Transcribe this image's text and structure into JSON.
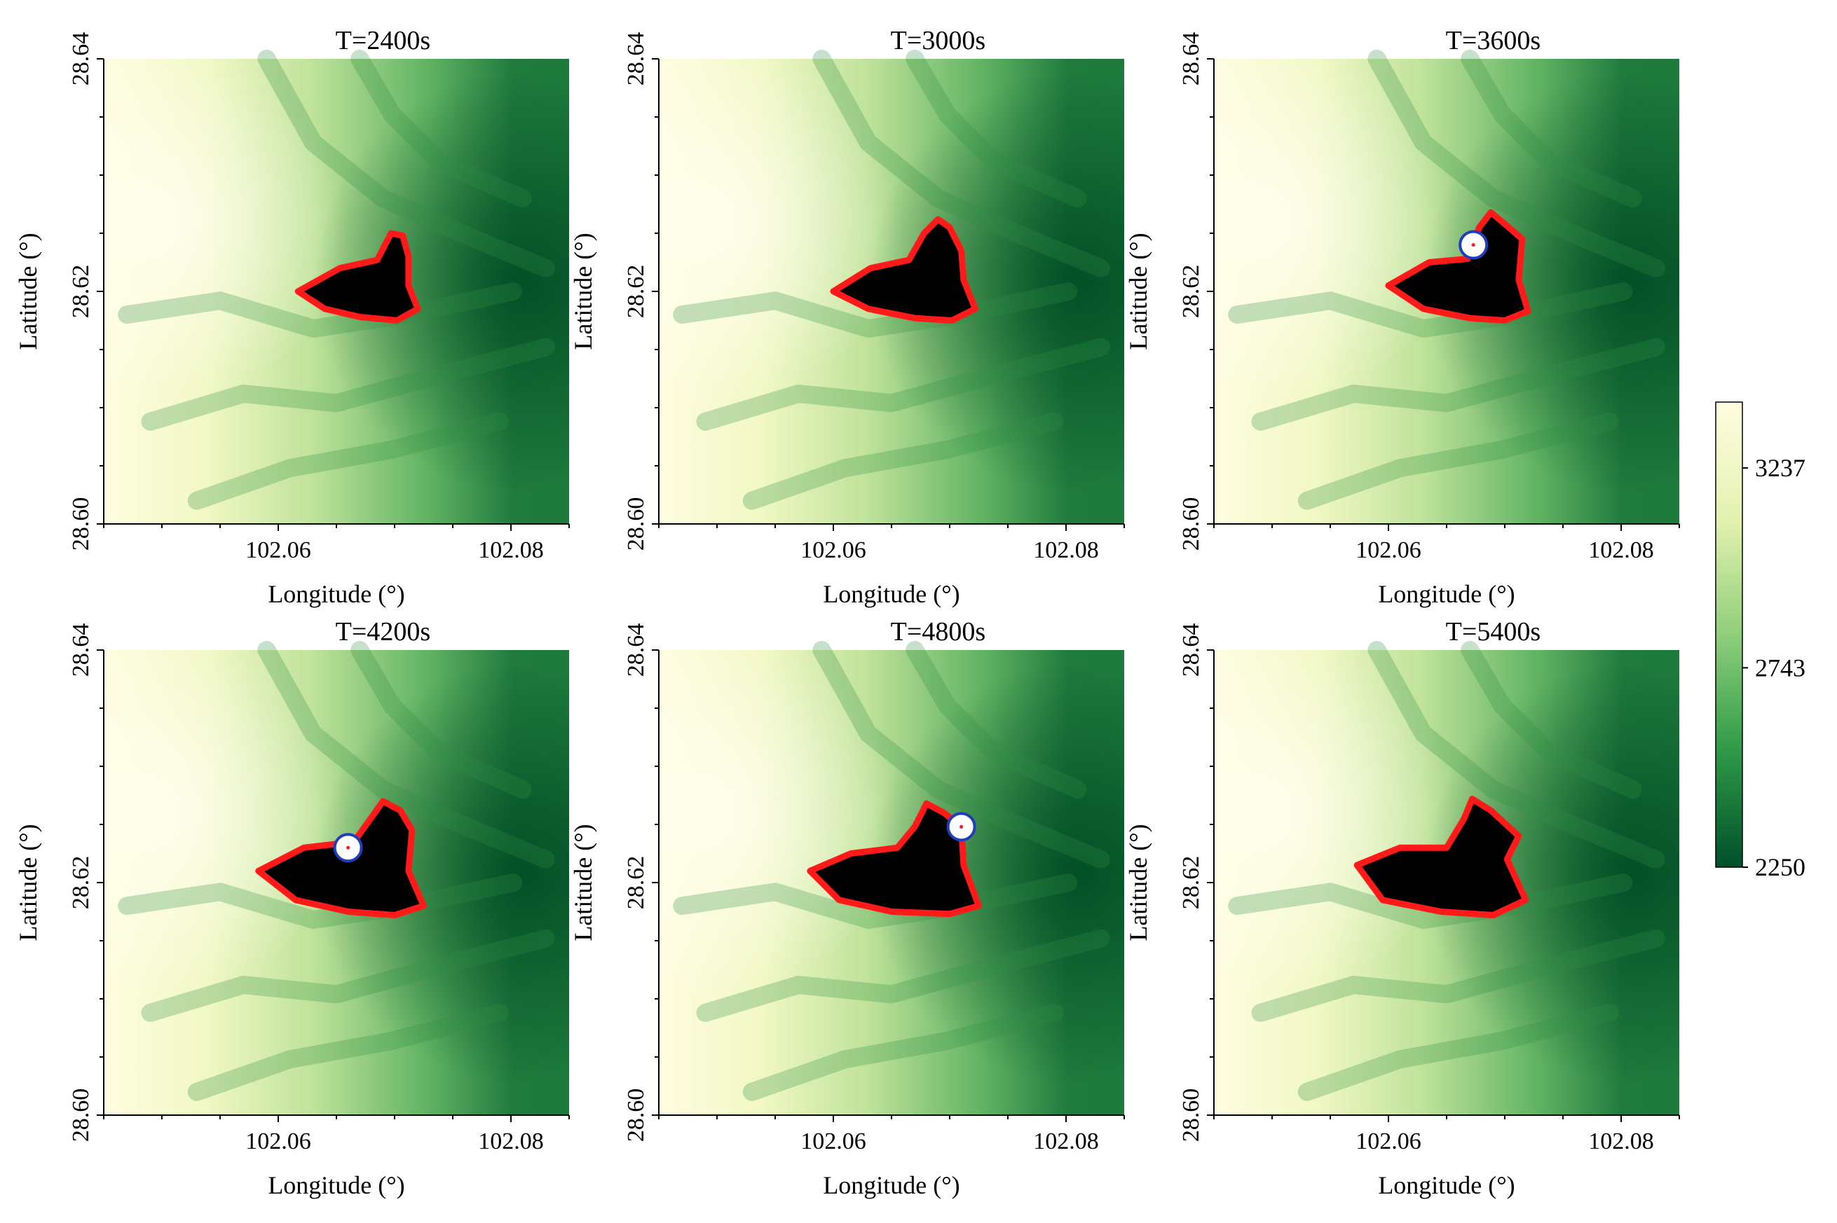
{
  "figure": {
    "panels": [
      {
        "title": "T=2400s",
        "xlabel": "Longitude (°)",
        "ylabel": "Latitude (°)",
        "marker": false
      },
      {
        "title": "T=3000s",
        "xlabel": "Longitude (°)",
        "ylabel": "Latitude (°)",
        "marker": false
      },
      {
        "title": "T=3600s",
        "xlabel": "Longitude (°)",
        "ylabel": "Latitude (°)",
        "marker": true
      },
      {
        "title": "T=4200s",
        "xlabel": "Longitude (°)",
        "ylabel": "Latitude (°)",
        "marker": true
      },
      {
        "title": "T=4800s",
        "xlabel": "Longitude (°)",
        "ylabel": "Latitude (°)",
        "marker": true
      },
      {
        "title": "T=5400s",
        "xlabel": "Longitude (°)",
        "ylabel": "Latitude (°)",
        "marker": false
      }
    ],
    "colorbar": {
      "ticks": [
        "3237",
        "2743",
        "2250"
      ],
      "min": 2250,
      "max": 3400,
      "colors": [
        "#00502a",
        "#2e9a47",
        "#8fcf7c",
        "#e4f2b0",
        "#fffde0"
      ]
    },
    "colors": {
      "burned_area": "#000000",
      "fire_front": "#ff1a1a",
      "marker_ring": "#1f3dbf",
      "marker_fill": "#ffffff"
    }
  },
  "chart_data": {
    "type": "heatmap",
    "title": "",
    "colorbar_range": [
      2250,
      3400
    ],
    "colorbar_ticks": [
      3237,
      2743,
      2250
    ],
    "panels": [
      {
        "title": "T=2400s",
        "xlabel": "Longitude (°)",
        "ylabel": "Latitude (°)",
        "xlim": [
          102.045,
          102.085
        ],
        "ylim": [
          28.6,
          28.64
        ],
        "xticks": [
          "102.06",
          "102.08"
        ],
        "yticks": [
          "28.60",
          "28.62",
          "28.64"
        ],
        "burned_area": [
          [
            102.0617,
            28.62
          ],
          [
            102.0653,
            28.622
          ],
          [
            102.0685,
            28.6227
          ],
          [
            102.0697,
            28.625
          ],
          [
            102.0707,
            28.6248
          ],
          [
            102.0712,
            28.623
          ],
          [
            102.0712,
            28.6205
          ],
          [
            102.072,
            28.6185
          ],
          [
            102.0702,
            28.6175
          ],
          [
            102.067,
            28.6178
          ],
          [
            102.064,
            28.6185
          ]
        ],
        "marker": null
      },
      {
        "title": "T=3000s",
        "xlabel": "Longitude (°)",
        "ylabel": "Latitude (°)",
        "xlim": [
          102.045,
          102.085
        ],
        "ylim": [
          28.6,
          28.64
        ],
        "xticks": [
          "102.06",
          "102.08"
        ],
        "yticks": [
          "28.60",
          "28.62",
          "28.64"
        ],
        "burned_area": [
          [
            102.06,
            28.62
          ],
          [
            102.0632,
            28.622
          ],
          [
            102.0665,
            28.6227
          ],
          [
            102.0678,
            28.625
          ],
          [
            102.069,
            28.6262
          ],
          [
            102.07,
            28.6255
          ],
          [
            102.071,
            28.6235
          ],
          [
            102.0712,
            28.621
          ],
          [
            102.0722,
            28.6185
          ],
          [
            102.0702,
            28.6175
          ],
          [
            102.067,
            28.6177
          ],
          [
            102.063,
            28.6185
          ]
        ],
        "marker": null
      },
      {
        "title": "T=3600s",
        "xlabel": "Longitude (°)",
        "ylabel": "Latitude (°)",
        "xlim": [
          102.045,
          102.085
        ],
        "ylim": [
          28.6,
          28.64
        ],
        "xticks": [
          "102.06",
          "102.08"
        ],
        "yticks": [
          "28.60",
          "28.62",
          "28.64"
        ],
        "burned_area": [
          [
            102.06,
            28.6205
          ],
          [
            102.0635,
            28.6225
          ],
          [
            102.0668,
            28.6228
          ],
          [
            102.0678,
            28.6255
          ],
          [
            102.0688,
            28.6268
          ],
          [
            102.07,
            28.6258
          ],
          [
            102.0715,
            28.6245
          ],
          [
            102.0712,
            28.621
          ],
          [
            102.072,
            28.6183
          ],
          [
            102.07,
            28.6175
          ],
          [
            102.067,
            28.6177
          ],
          [
            102.063,
            28.6185
          ]
        ],
        "marker": [
          102.0673,
          28.624
        ]
      },
      {
        "title": "T=4200s",
        "xlabel": "Longitude (°)",
        "ylabel": "Latitude (°)",
        "xlim": [
          102.045,
          102.085
        ],
        "ylim": [
          28.6,
          28.64
        ],
        "xticks": [
          "102.06",
          "102.08"
        ],
        "yticks": [
          "28.60",
          "28.62",
          "28.64"
        ],
        "burned_area": [
          [
            102.0583,
            28.621
          ],
          [
            102.0622,
            28.623
          ],
          [
            102.0665,
            28.6235
          ],
          [
            102.0683,
            28.626
          ],
          [
            102.069,
            28.627
          ],
          [
            102.0705,
            28.6262
          ],
          [
            102.0715,
            28.6245
          ],
          [
            102.0712,
            28.621
          ],
          [
            102.0725,
            28.618
          ],
          [
            102.07,
            28.6172
          ],
          [
            102.066,
            28.6175
          ],
          [
            102.0615,
            28.6185
          ]
        ],
        "marker": [
          102.066,
          28.623
        ]
      },
      {
        "title": "T=4800s",
        "xlabel": "Longitude (°)",
        "ylabel": "Latitude (°)",
        "xlim": [
          102.045,
          102.085
        ],
        "ylim": [
          28.6,
          28.64
        ],
        "xticks": [
          "102.06",
          "102.08"
        ],
        "yticks": [
          "28.60",
          "28.62",
          "28.64"
        ],
        "burned_area": [
          [
            102.058,
            28.621
          ],
          [
            102.0615,
            28.6225
          ],
          [
            102.0655,
            28.623
          ],
          [
            102.067,
            28.6248
          ],
          [
            102.068,
            28.6268
          ],
          [
            102.0695,
            28.626
          ],
          [
            102.071,
            28.6248
          ],
          [
            102.0712,
            28.6215
          ],
          [
            102.0725,
            28.618
          ],
          [
            102.07,
            28.6173
          ],
          [
            102.065,
            28.6175
          ],
          [
            102.0605,
            28.6185
          ]
        ],
        "marker": [
          102.071,
          28.6248
        ]
      },
      {
        "title": "T=5400s",
        "xlabel": "Longitude (°)",
        "ylabel": "Latitude (°)",
        "xlim": [
          102.045,
          102.085
        ],
        "ylim": [
          28.6,
          28.64
        ],
        "xticks": [
          "102.06",
          "102.08"
        ],
        "yticks": [
          "28.60",
          "28.62",
          "28.64"
        ],
        "burned_area": [
          [
            102.0573,
            28.6215
          ],
          [
            102.061,
            28.623
          ],
          [
            102.065,
            28.623
          ],
          [
            102.0665,
            28.6255
          ],
          [
            102.0672,
            28.6272
          ],
          [
            102.0688,
            28.6262
          ],
          [
            102.0712,
            28.624
          ],
          [
            102.0702,
            28.622
          ],
          [
            102.0718,
            28.6185
          ],
          [
            102.069,
            28.6172
          ],
          [
            102.0645,
            28.6175
          ],
          [
            102.0595,
            28.6185
          ]
        ],
        "marker": null
      }
    ]
  }
}
